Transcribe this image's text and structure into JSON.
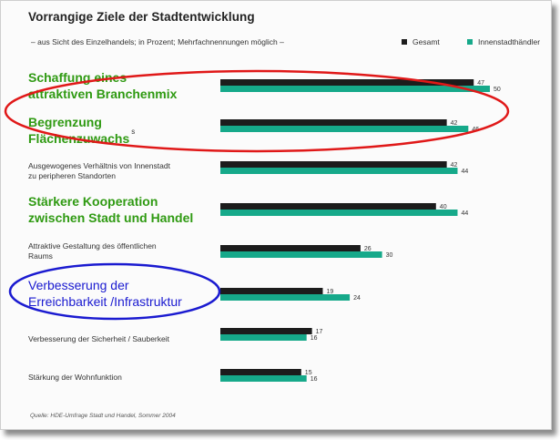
{
  "title": "Vorrangige Ziele der Stadtentwicklung",
  "subtitle": "– aus Sicht des Einzelhandels; in Prozent; Mehrfachnennungen möglich –",
  "source": "Quelle: HDE-Umfrage Stadt und Handel, Sommer 2004",
  "colors": {
    "gesamt": "#1c1c1c",
    "innenstadt": "#16a98a",
    "red": "#e01818",
    "blue": "#1a1ad0",
    "green": "#2f9a12"
  },
  "chart_data": {
    "type": "bar",
    "orientation": "horizontal",
    "legend_position": "top-right",
    "xlim": [
      0,
      50
    ],
    "categories": [
      "Schaffung eines attraktiven Branchenmix",
      "Begrenzung Flächenzuwachs",
      "Ausgewogenes Verhältnis von Innenstadt zu peripheren Standorten",
      "Stärkere Kooperation zwischen Stadt und Handel",
      "Attraktive Gestaltung des öffentlichen Raums",
      "Verbesserung der Erreichbarkeit /Infrastruktur",
      "Verbesserung der Sicherheit / Sauberkeit",
      "Stärkung der Wohnfunktion"
    ],
    "series": [
      {
        "name": "Gesamt",
        "values": [
          47,
          42,
          42,
          40,
          26,
          19,
          17,
          15
        ]
      },
      {
        "name": "Innenstadthändler",
        "values": [
          50,
          46,
          44,
          44,
          30,
          24,
          16,
          16
        ]
      }
    ]
  },
  "labels": {
    "cat1_line1": "Schaffung eines",
    "cat1_line2": "attraktiven Branchenmix",
    "cat2_line1": "Begrenzung",
    "cat2_line2": "Flächenzuwachs",
    "cat2_sup": "s",
    "cat3_line1": "Ausgewogenes Verhältnis von Innenstadt",
    "cat3_line2": "zu peripheren Standorten",
    "cat4_line1": "Stärkere Kooperation",
    "cat4_line2": "zwischen Stadt und Handel",
    "cat5_line1": "Attraktive Gestaltung des öffentlichen",
    "cat5_line2": "Raums",
    "cat6_line1": "Verbesserung der",
    "cat6_line2": "Erreichbarkeit /Infrastruktur",
    "cat7_line1": "Verbesserung der Sicherheit / Sauberkeit",
    "cat8_line1": "Stärkung der Wohnfunktion"
  }
}
